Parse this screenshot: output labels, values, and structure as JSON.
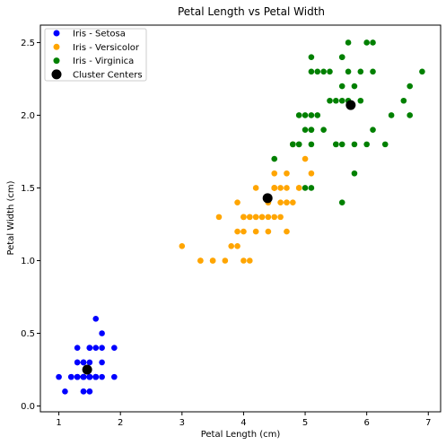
{
  "chart_data": {
    "type": "scatter",
    "title": "Petal Length vs Petal Width",
    "xlabel": "Petal Length (cm)",
    "ylabel": "Petal Width (cm)",
    "xlim": [
      0.7,
      7.2
    ],
    "ylim": [
      -0.04,
      2.62
    ],
    "xticks": [
      1,
      2,
      3,
      4,
      5,
      6,
      7
    ],
    "yticks": [
      0.0,
      0.5,
      1.0,
      1.5,
      2.0,
      2.5
    ],
    "ytick_labels": [
      "0.0",
      "0.5",
      "1.0",
      "1.5",
      "2.0",
      "2.5"
    ],
    "grid": false,
    "legend_position": "top-left",
    "series": [
      {
        "name": "Iris - Setosa",
        "color": "#0000ff",
        "points": [
          [
            1.4,
            0.2
          ],
          [
            1.4,
            0.2
          ],
          [
            1.3,
            0.2
          ],
          [
            1.5,
            0.2
          ],
          [
            1.4,
            0.2
          ],
          [
            1.7,
            0.4
          ],
          [
            1.4,
            0.3
          ],
          [
            1.5,
            0.2
          ],
          [
            1.4,
            0.2
          ],
          [
            1.5,
            0.1
          ],
          [
            1.5,
            0.2
          ],
          [
            1.6,
            0.2
          ],
          [
            1.4,
            0.1
          ],
          [
            1.1,
            0.1
          ],
          [
            1.2,
            0.2
          ],
          [
            1.5,
            0.4
          ],
          [
            1.3,
            0.4
          ],
          [
            1.4,
            0.3
          ],
          [
            1.7,
            0.3
          ],
          [
            1.5,
            0.3
          ],
          [
            1.7,
            0.2
          ],
          [
            1.5,
            0.4
          ],
          [
            1.0,
            0.2
          ],
          [
            1.7,
            0.5
          ],
          [
            1.9,
            0.2
          ],
          [
            1.6,
            0.2
          ],
          [
            1.6,
            0.4
          ],
          [
            1.5,
            0.2
          ],
          [
            1.4,
            0.2
          ],
          [
            1.6,
            0.2
          ],
          [
            1.6,
            0.2
          ],
          [
            1.5,
            0.4
          ],
          [
            1.5,
            0.1
          ],
          [
            1.4,
            0.2
          ],
          [
            1.5,
            0.2
          ],
          [
            1.2,
            0.2
          ],
          [
            1.3,
            0.2
          ],
          [
            1.4,
            0.1
          ],
          [
            1.3,
            0.2
          ],
          [
            1.5,
            0.2
          ],
          [
            1.3,
            0.3
          ],
          [
            1.3,
            0.3
          ],
          [
            1.3,
            0.2
          ],
          [
            1.6,
            0.6
          ],
          [
            1.9,
            0.4
          ],
          [
            1.4,
            0.3
          ],
          [
            1.6,
            0.2
          ],
          [
            1.4,
            0.2
          ],
          [
            1.5,
            0.2
          ],
          [
            1.4,
            0.2
          ]
        ]
      },
      {
        "name": "Iris - Versicolor",
        "color": "#ffa500",
        "points": [
          [
            4.7,
            1.4
          ],
          [
            4.5,
            1.5
          ],
          [
            4.9,
            1.5
          ],
          [
            4.0,
            1.3
          ],
          [
            4.6,
            1.5
          ],
          [
            4.5,
            1.3
          ],
          [
            4.7,
            1.6
          ],
          [
            3.3,
            1.0
          ],
          [
            4.6,
            1.3
          ],
          [
            3.9,
            1.4
          ],
          [
            3.5,
            1.0
          ],
          [
            4.2,
            1.5
          ],
          [
            4.0,
            1.0
          ],
          [
            4.7,
            1.4
          ],
          [
            3.6,
            1.3
          ],
          [
            4.4,
            1.4
          ],
          [
            4.5,
            1.5
          ],
          [
            4.1,
            1.0
          ],
          [
            4.5,
            1.5
          ],
          [
            3.9,
            1.1
          ],
          [
            4.8,
            1.8
          ],
          [
            4.0,
            1.3
          ],
          [
            4.9,
            1.5
          ],
          [
            4.7,
            1.2
          ],
          [
            4.3,
            1.3
          ],
          [
            4.4,
            1.4
          ],
          [
            4.8,
            1.4
          ],
          [
            5.0,
            1.7
          ],
          [
            4.5,
            1.5
          ],
          [
            3.5,
            1.0
          ],
          [
            3.8,
            1.1
          ],
          [
            3.7,
            1.0
          ],
          [
            3.9,
            1.2
          ],
          [
            5.1,
            1.6
          ],
          [
            4.5,
            1.5
          ],
          [
            4.5,
            1.6
          ],
          [
            4.7,
            1.5
          ],
          [
            4.4,
            1.3
          ],
          [
            4.1,
            1.3
          ],
          [
            4.0,
            1.3
          ],
          [
            4.4,
            1.2
          ],
          [
            4.6,
            1.4
          ],
          [
            4.0,
            1.2
          ],
          [
            3.3,
            1.0
          ],
          [
            4.2,
            1.3
          ],
          [
            4.2,
            1.2
          ],
          [
            4.2,
            1.3
          ],
          [
            4.3,
            1.3
          ],
          [
            3.0,
            1.1
          ],
          [
            4.1,
            1.3
          ]
        ]
      },
      {
        "name": "Iris - Virginica",
        "color": "#008000",
        "points": [
          [
            6.0,
            2.5
          ],
          [
            5.1,
            1.9
          ],
          [
            5.9,
            2.1
          ],
          [
            5.6,
            1.8
          ],
          [
            5.8,
            2.2
          ],
          [
            6.6,
            2.1
          ],
          [
            4.5,
            1.7
          ],
          [
            6.3,
            1.8
          ],
          [
            5.8,
            1.8
          ],
          [
            6.1,
            2.5
          ],
          [
            5.1,
            2.0
          ],
          [
            5.3,
            1.9
          ],
          [
            5.5,
            2.1
          ],
          [
            5.0,
            2.0
          ],
          [
            5.1,
            2.4
          ],
          [
            5.3,
            2.3
          ],
          [
            5.5,
            1.8
          ],
          [
            6.7,
            2.2
          ],
          [
            6.9,
            2.3
          ],
          [
            5.0,
            1.5
          ],
          [
            5.7,
            2.3
          ],
          [
            4.9,
            2.0
          ],
          [
            6.7,
            2.0
          ],
          [
            4.9,
            1.8
          ],
          [
            5.7,
            2.1
          ],
          [
            6.0,
            1.8
          ],
          [
            4.8,
            1.8
          ],
          [
            4.9,
            1.8
          ],
          [
            5.6,
            2.1
          ],
          [
            5.8,
            1.6
          ],
          [
            6.1,
            1.9
          ],
          [
            6.4,
            2.0
          ],
          [
            5.6,
            2.2
          ],
          [
            5.1,
            1.5
          ],
          [
            5.6,
            1.4
          ],
          [
            6.1,
            2.3
          ],
          [
            5.6,
            2.4
          ],
          [
            5.5,
            1.8
          ],
          [
            4.8,
            1.8
          ],
          [
            5.4,
            2.1
          ],
          [
            5.6,
            2.4
          ],
          [
            5.1,
            2.3
          ],
          [
            5.1,
            1.9
          ],
          [
            5.9,
            2.3
          ],
          [
            5.7,
            2.5
          ],
          [
            5.2,
            2.3
          ],
          [
            5.0,
            1.9
          ],
          [
            5.2,
            2.0
          ],
          [
            5.4,
            2.3
          ],
          [
            5.1,
            1.8
          ]
        ]
      }
    ],
    "cluster_centers": {
      "name": "Cluster Centers",
      "color": "#000000",
      "points": [
        [
          1.46,
          0.25
        ],
        [
          4.39,
          1.43
        ],
        [
          5.74,
          2.07
        ]
      ]
    }
  }
}
